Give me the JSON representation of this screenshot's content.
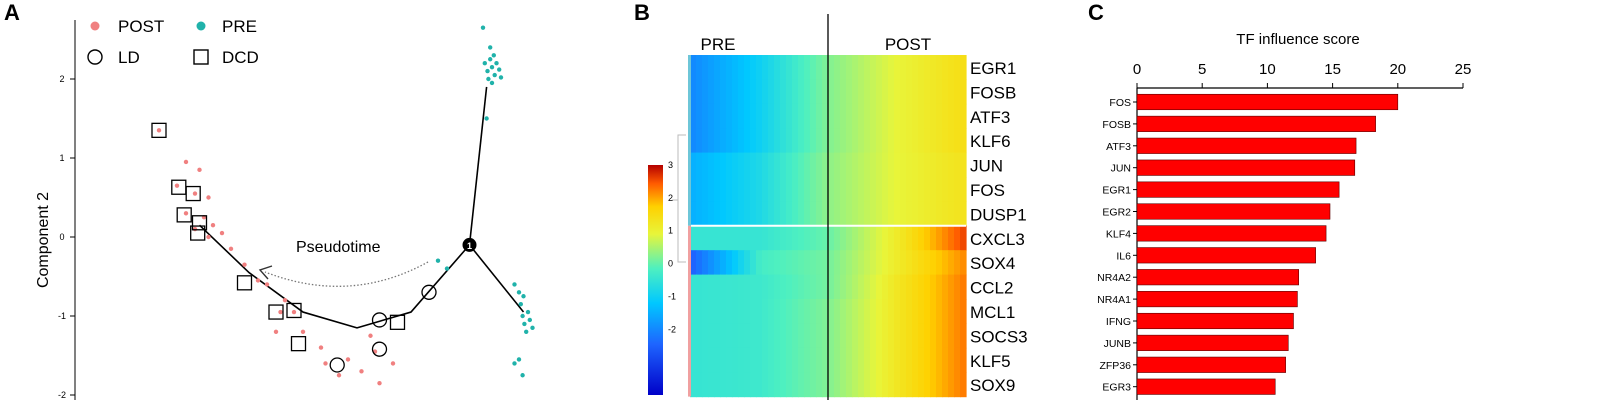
{
  "panels": {
    "a": "A",
    "b": "B",
    "c": "C"
  },
  "chart_data": [
    {
      "type": "scatter",
      "ylabel": "Component 2",
      "ylim": [
        -2,
        2.6
      ],
      "yticks": [
        2,
        1,
        0,
        -1,
        -2
      ],
      "legend": {
        "groups": [
          {
            "name": "POST",
            "color": "#f08080"
          },
          {
            "name": "PRE",
            "color": "#20b2aa"
          }
        ],
        "markers": [
          {
            "name": "LD",
            "shape": "circle"
          },
          {
            "name": "DCD",
            "shape": "square"
          }
        ]
      },
      "annotation": "Pseudotime",
      "branch_label": "1",
      "series": [
        {
          "name": "POST",
          "color": "#f08080",
          "points": [
            [
              -1.9,
              1.35
            ],
            [
              -1.6,
              0.95
            ],
            [
              -1.45,
              0.85
            ],
            [
              -1.7,
              0.65
            ],
            [
              -1.5,
              0.55
            ],
            [
              -1.35,
              0.5
            ],
            [
              -1.6,
              0.3
            ],
            [
              -1.4,
              0.25
            ],
            [
              -1.5,
              0.1
            ],
            [
              -1.3,
              0.15
            ],
            [
              -1.2,
              0.05
            ],
            [
              -1.35,
              0.0
            ],
            [
              -1.1,
              -0.15
            ],
            [
              -0.95,
              -0.35
            ],
            [
              -0.8,
              -0.55
            ],
            [
              -0.7,
              -0.6
            ],
            [
              -0.5,
              -0.8
            ],
            [
              -0.55,
              -0.95
            ],
            [
              -0.4,
              -0.95
            ],
            [
              -0.3,
              -1.2
            ],
            [
              -0.6,
              -1.2
            ],
            [
              -0.1,
              -1.4
            ],
            [
              -0.05,
              -1.6
            ],
            [
              0.1,
              -1.75
            ],
            [
              0.2,
              -1.55
            ],
            [
              0.35,
              -1.7
            ],
            [
              0.5,
              -1.45
            ],
            [
              0.45,
              -1.25
            ],
            [
              0.55,
              -1.85
            ],
            [
              0.7,
              -1.6
            ]
          ]
        },
        {
          "name": "PRE",
          "color": "#20b2aa",
          "points": [
            [
              1.7,
              2.65
            ],
            [
              1.78,
              2.4
            ],
            [
              1.82,
              2.3
            ],
            [
              1.78,
              2.25
            ],
            [
              1.85,
              2.2
            ],
            [
              1.72,
              2.2
            ],
            [
              1.8,
              2.15
            ],
            [
              1.88,
              2.12
            ],
            [
              1.75,
              2.1
            ],
            [
              1.83,
              2.05
            ],
            [
              1.9,
              2.02
            ],
            [
              1.76,
              2.0
            ],
            [
              1.8,
              1.95
            ],
            [
              1.74,
              1.5
            ],
            [
              1.2,
              -0.3
            ],
            [
              1.3,
              -0.4
            ],
            [
              2.05,
              -0.6
            ],
            [
              2.1,
              -0.7
            ],
            [
              2.15,
              -0.75
            ],
            [
              2.12,
              -0.85
            ],
            [
              2.2,
              -0.95
            ],
            [
              2.14,
              -1.0
            ],
            [
              2.22,
              -1.05
            ],
            [
              2.16,
              -1.1
            ],
            [
              2.25,
              -1.15
            ],
            [
              2.18,
              -1.2
            ],
            [
              2.1,
              -1.55
            ],
            [
              2.05,
              -1.6
            ],
            [
              2.14,
              -1.75
            ]
          ]
        },
        {
          "name": "LD",
          "shape": "circle",
          "points": [
            [
              1.1,
              -0.7
            ],
            [
              0.55,
              -1.05
            ],
            [
              0.55,
              -1.42
            ],
            [
              0.08,
              -1.62
            ]
          ]
        },
        {
          "name": "DCD",
          "shape": "square",
          "points": [
            [
              -1.9,
              1.35
            ],
            [
              -1.68,
              0.63
            ],
            [
              -1.52,
              0.55
            ],
            [
              -1.62,
              0.28
            ],
            [
              -1.45,
              0.18
            ],
            [
              -1.47,
              0.05
            ],
            [
              -0.95,
              -0.58
            ],
            [
              -0.6,
              -0.95
            ],
            [
              -0.4,
              -0.93
            ],
            [
              -0.35,
              -1.35
            ],
            [
              0.75,
              -1.08
            ]
          ]
        }
      ],
      "trajectory": {
        "trunk": [
          [
            -1.45,
            0.15
          ],
          [
            -0.9,
            -0.45
          ],
          [
            -0.3,
            -0.95
          ],
          [
            0.3,
            -1.15
          ],
          [
            0.9,
            -0.95
          ],
          [
            1.55,
            -0.1
          ]
        ],
        "branch_up": [
          [
            1.55,
            -0.1
          ],
          [
            1.74,
            1.9
          ]
        ],
        "branch_down": [
          [
            1.55,
            -0.1
          ],
          [
            2.15,
            -0.95
          ]
        ]
      }
    },
    {
      "type": "heatmap",
      "columns_groups": [
        "PRE",
        "POST"
      ],
      "colorbar": {
        "min": -4,
        "max": 3,
        "ticks": [
          3,
          2,
          1,
          0,
          -1,
          -2
        ]
      },
      "rows": [
        "EGR1",
        "FOSB",
        "ATF3",
        "KLF6",
        "JUN",
        "FOS",
        "DUSP1",
        "CXCL3",
        "SOX4",
        "CCL2",
        "MCL1",
        "SOCS3",
        "KLF5",
        "SOX9"
      ],
      "values_summary": [
        [
          -2.0,
          -1.0,
          0.2,
          1.0,
          1.5
        ],
        [
          -2.0,
          -1.0,
          0.2,
          1.0,
          1.5
        ],
        [
          -2.0,
          -1.0,
          0.2,
          1.0,
          1.5
        ],
        [
          -2.0,
          -1.0,
          0.2,
          1.0,
          1.5
        ],
        [
          -1.5,
          -0.8,
          0.3,
          1.0,
          1.4
        ],
        [
          -1.5,
          -0.8,
          0.3,
          1.0,
          1.4
        ],
        [
          -1.5,
          -0.8,
          0.3,
          1.0,
          1.4
        ],
        [
          -0.5,
          -0.5,
          0.0,
          1.2,
          2.6
        ],
        [
          -2.5,
          -0.3,
          0.1,
          1.2,
          2.2
        ],
        [
          -0.5,
          -0.4,
          0.1,
          1.3,
          2.3
        ],
        [
          -0.5,
          -0.4,
          0.2,
          1.3,
          2.3
        ],
        [
          -0.5,
          -0.4,
          0.2,
          1.3,
          2.3
        ],
        [
          -0.5,
          -0.4,
          0.2,
          1.3,
          2.3
        ],
        [
          -0.5,
          -0.4,
          0.2,
          1.3,
          2.3
        ]
      ]
    },
    {
      "type": "bar",
      "orientation": "horizontal",
      "xlabel": "TF influence score",
      "xlim": [
        0,
        25
      ],
      "xticks": [
        0,
        5,
        10,
        15,
        20,
        25
      ],
      "color": "#ff0000",
      "categories": [
        "FOS",
        "FOSB",
        "ATF3",
        "JUN",
        "EGR1",
        "EGR2",
        "KLF4",
        "IL6",
        "NR4A2",
        "NR4A1",
        "IFNG",
        "JUNB",
        "ZFP36",
        "EGR3"
      ],
      "values": [
        20.0,
        18.3,
        16.8,
        16.7,
        15.5,
        14.8,
        14.5,
        13.7,
        12.4,
        12.3,
        12.0,
        11.6,
        11.4,
        10.6
      ]
    }
  ]
}
